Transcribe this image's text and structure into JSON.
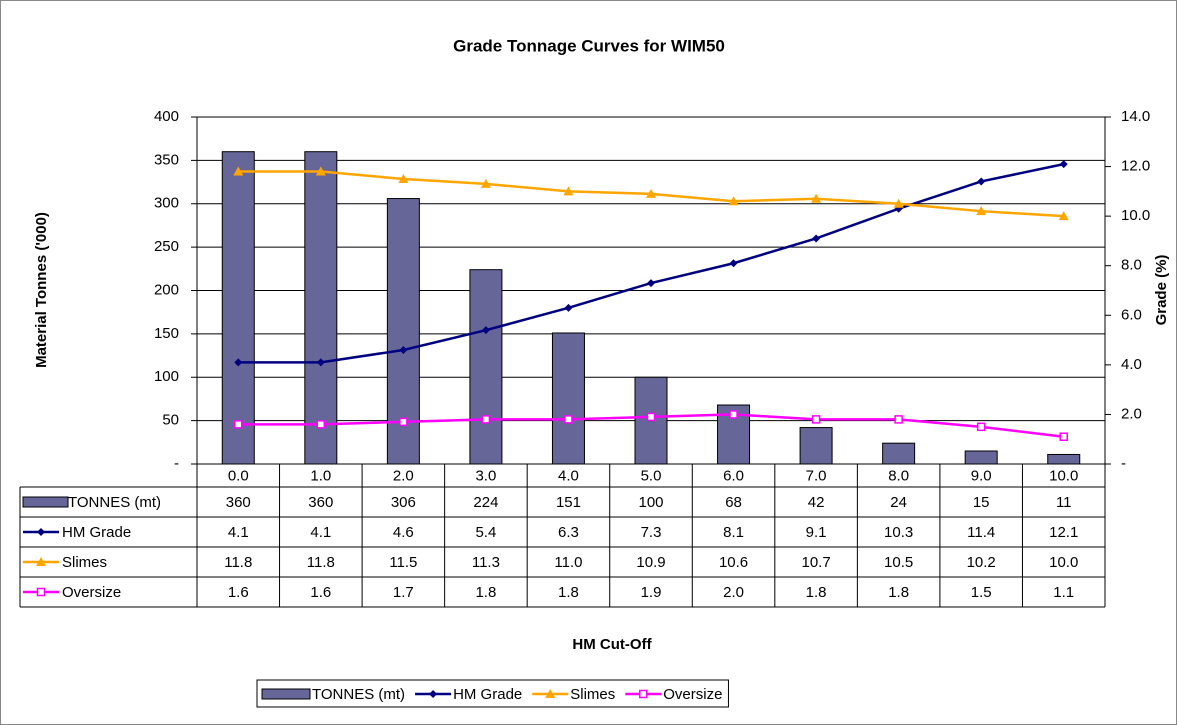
{
  "chart_data": {
    "type": "bar",
    "title": "Grade Tonnage Curves for WIM50",
    "x_label": "HM Cut-Off",
    "y_label": "Material Tonnes ('000)",
    "y2_label": "Grade (%)",
    "categories": [
      "0.0",
      "1.0",
      "2.0",
      "3.0",
      "4.0",
      "5.0",
      "6.0",
      "7.0",
      "8.0",
      "9.0",
      "10.0"
    ],
    "series": [
      {
        "name": "TONNES (mt)",
        "type": "bar",
        "color": "#666699",
        "values": [
          360,
          360,
          306,
          224,
          151,
          100,
          68,
          42,
          24,
          15,
          11
        ]
      },
      {
        "name": "HM Grade",
        "type": "line",
        "marker": "diamond",
        "axis": "y2",
        "color": "#000080",
        "values": [
          4.1,
          4.1,
          4.6,
          5.4,
          6.3,
          7.3,
          8.1,
          9.1,
          10.3,
          11.4,
          12.1
        ],
        "value_labels": [
          "4.1",
          "4.1",
          "4.6",
          "5.4",
          "6.3",
          "7.3",
          "8.1",
          "9.1",
          "10.3",
          "11.4",
          "12.1"
        ]
      },
      {
        "name": "Slimes",
        "type": "line",
        "marker": "triangle",
        "axis": "y2",
        "color": "#ffa500",
        "values": [
          11.8,
          11.8,
          11.5,
          11.3,
          11.0,
          10.9,
          10.6,
          10.7,
          10.5,
          10.2,
          10.0
        ],
        "value_labels": [
          "11.8",
          "11.8",
          "11.5",
          "11.3",
          "11.0",
          "10.9",
          "10.6",
          "10.7",
          "10.5",
          "10.2",
          "10.0"
        ]
      },
      {
        "name": "Oversize",
        "type": "line",
        "marker": "square",
        "axis": "y2",
        "color": "#ff00ff",
        "values": [
          1.6,
          1.6,
          1.7,
          1.8,
          1.8,
          1.9,
          2.0,
          1.8,
          1.8,
          1.5,
          1.1
        ],
        "value_labels": [
          "1.6",
          "1.6",
          "1.7",
          "1.8",
          "1.8",
          "1.9",
          "2.0",
          "1.8",
          "1.8",
          "1.5",
          "1.1"
        ]
      }
    ],
    "ylim": [
      0,
      400
    ],
    "yticks": [
      {
        "value": 0,
        "label": "-"
      },
      50,
      100,
      150,
      200,
      250,
      300,
      350,
      400
    ],
    "y2lim": [
      0,
      14
    ],
    "y2ticks": [
      {
        "value": 0,
        "label": "-"
      },
      {
        "value": 2,
        "label": "2.0"
      },
      {
        "value": 4,
        "label": "4.0"
      },
      {
        "value": 6,
        "label": "6.0"
      },
      {
        "value": 8,
        "label": "8.0"
      },
      {
        "value": 10,
        "label": "10.0"
      },
      {
        "value": 12,
        "label": "12.0"
      },
      {
        "value": 14,
        "label": "14.0"
      }
    ],
    "grid": true,
    "legend": "bottom"
  }
}
